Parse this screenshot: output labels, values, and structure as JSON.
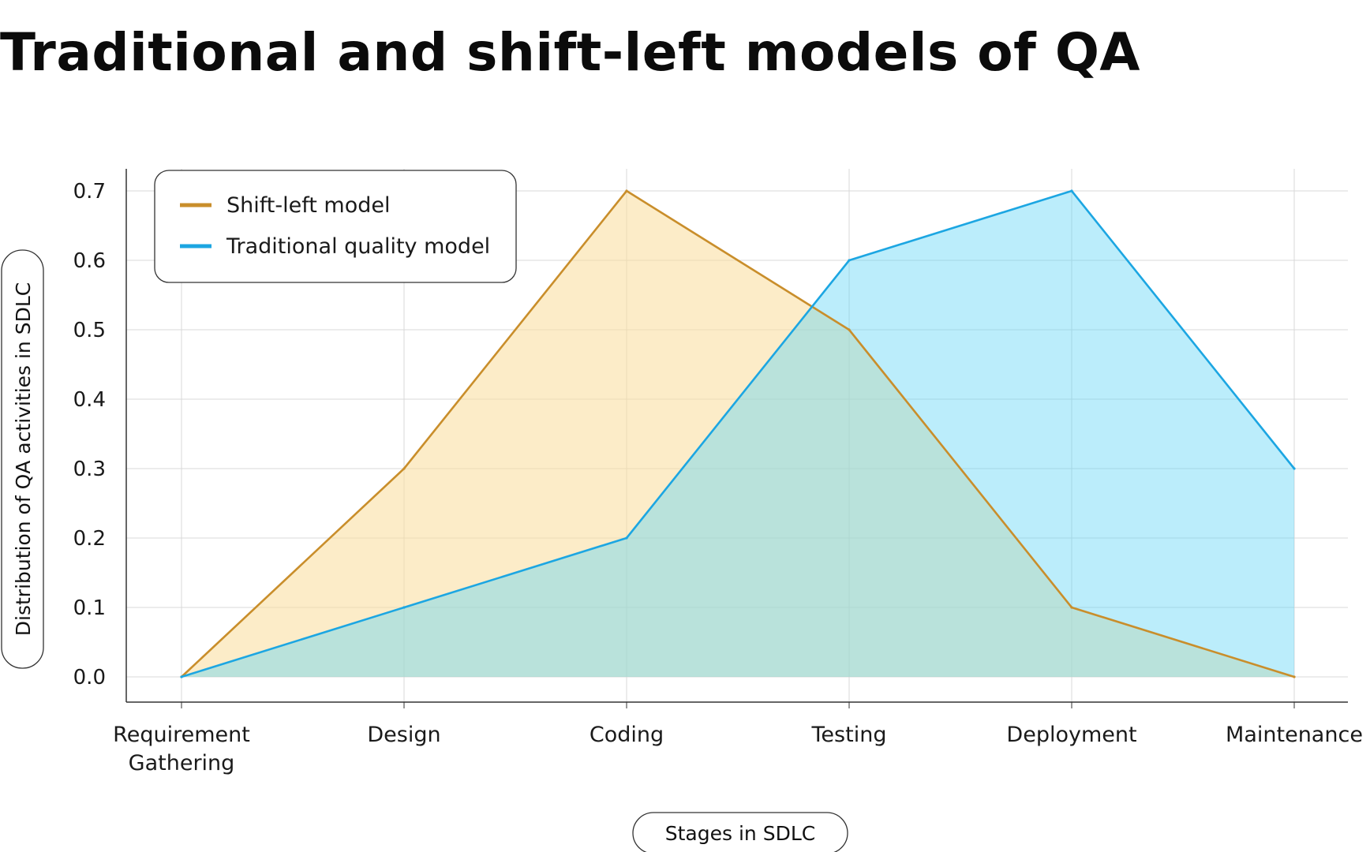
{
  "page": {
    "title": "Traditional and shift-left models of QA"
  },
  "chart_data": {
    "type": "area",
    "title": "Traditional and shift-left models of QA",
    "xlabel": "Stages in SDLC",
    "ylabel": "Distribution of QA activities in SDLC",
    "categories": [
      [
        "Requirement",
        "Gathering"
      ],
      [
        "Design"
      ],
      [
        "Coding"
      ],
      [
        "Testing"
      ],
      [
        "Deployment"
      ],
      [
        "Maintenance"
      ]
    ],
    "yticks": [
      "0.0",
      "0.1",
      "0.2",
      "0.3",
      "0.4",
      "0.5",
      "0.6",
      "0.7"
    ],
    "ylim": [
      0,
      0.7
    ],
    "grid": true,
    "legend_position": "top-left",
    "series": [
      {
        "name": "Shift-left model",
        "values": [
          0.0,
          0.3,
          0.7,
          0.5,
          0.1,
          0.0
        ],
        "line_color": "#C98E2B",
        "fill_color": "#F9DD9B",
        "fill_opacity": 0.55
      },
      {
        "name": "Traditional quality model",
        "values": [
          0.0,
          0.1,
          0.2,
          0.6,
          0.7,
          0.3
        ],
        "line_color": "#1CA6E2",
        "fill_color": "#5CD5F5",
        "fill_opacity": 0.42
      }
    ]
  }
}
